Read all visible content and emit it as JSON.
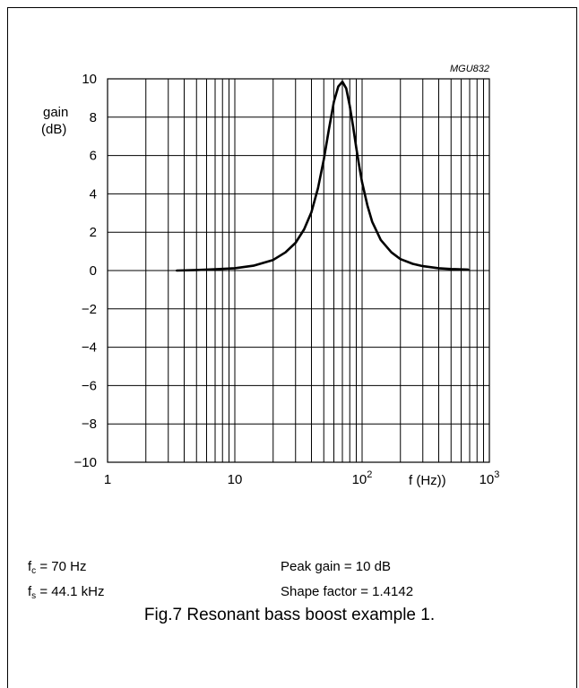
{
  "chart_data": {
    "type": "line",
    "figure_code": "MGU832",
    "ylabel_line1": "gain",
    "ylabel_line2": "(dB)",
    "xlabel": "f (Hz))",
    "x_scale": "log",
    "xlim": [
      1,
      1000
    ],
    "ylim": [
      -10,
      10
    ],
    "x_ticks": [
      {
        "value": 1,
        "base": "1",
        "exp": ""
      },
      {
        "value": 10,
        "base": "10",
        "exp": ""
      },
      {
        "value": 100,
        "base": "10",
        "exp": "2"
      },
      {
        "value": 1000,
        "base": "10",
        "exp": "3"
      }
    ],
    "y_ticks": [
      "10",
      "8",
      "6",
      "4",
      "2",
      "0",
      "−2",
      "−4",
      "−6",
      "−8",
      "−10"
    ],
    "y_tick_values": [
      10,
      8,
      6,
      4,
      2,
      0,
      -2,
      -4,
      -6,
      -8,
      -10
    ],
    "grid": true,
    "series": [
      {
        "x": [
          3.5,
          5,
          7,
          10,
          14,
          20,
          25,
          30,
          35,
          40,
          45,
          50,
          55,
          60,
          65,
          70,
          75,
          80,
          85,
          90,
          95,
          100,
          110,
          120,
          140,
          170,
          200,
          250,
          300,
          400,
          500,
          680
        ],
        "y": [
          0.0,
          0.03,
          0.07,
          0.12,
          0.25,
          0.55,
          0.95,
          1.45,
          2.15,
          3.05,
          4.3,
          5.8,
          7.4,
          8.8,
          9.6,
          9.85,
          9.5,
          8.6,
          7.5,
          6.4,
          5.45,
          4.6,
          3.4,
          2.55,
          1.6,
          0.95,
          0.6,
          0.35,
          0.23,
          0.12,
          0.08,
          0.05
        ],
        "color": "#000000"
      }
    ]
  },
  "notes": {
    "fc": {
      "sym": "f",
      "sub": "c",
      "rest": " = 70 Hz"
    },
    "fs": {
      "sym": "f",
      "sub": "s",
      "rest": " = 44.1 kHz"
    },
    "peak_gain": "Peak gain = 10 dB",
    "shape_factor": "Shape factor = 1.4142"
  },
  "caption": "Fig.7  Resonant bass boost example 1."
}
